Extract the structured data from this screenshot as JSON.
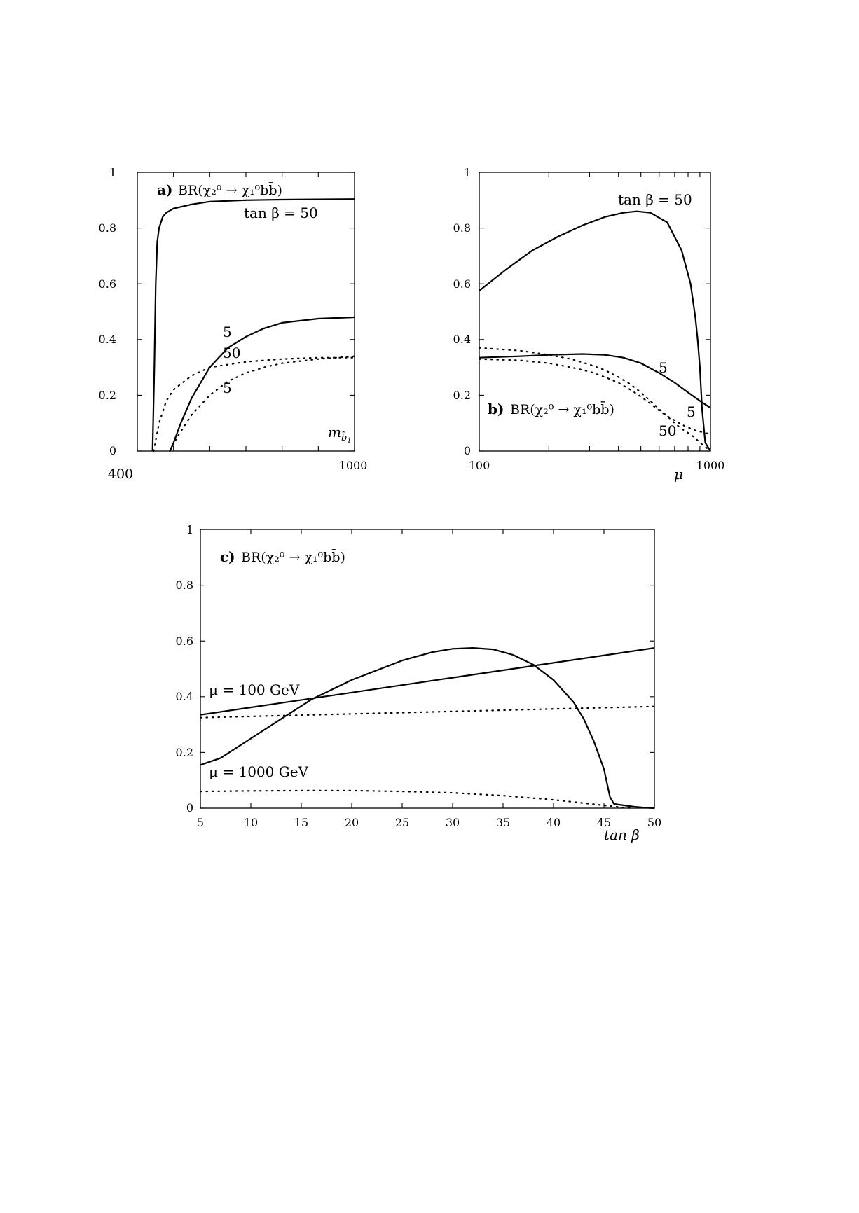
{
  "chart_data": [
    {
      "id": "a",
      "type": "line",
      "panel_letter": "a)",
      "title": "BR(χ₂⁰ → χ₁⁰bb̄)",
      "xlabel": "m_b̃1",
      "ylabel": "",
      "xlim": [
        400,
        1000
      ],
      "ylim": [
        0,
        1
      ],
      "x_tick_labels": [
        "400",
        "1000"
      ],
      "y_tick_labels": [
        "0",
        "0.2",
        "0.4",
        "0.6",
        "0.8",
        "1"
      ],
      "y_ticks": [
        0,
        0.2,
        0.4,
        0.6,
        0.8,
        1
      ],
      "annotations": [
        "tan β = 50",
        "5",
        "50",
        "5"
      ],
      "series": [
        {
          "style": "solid",
          "x": [
            442,
            447,
            451,
            455,
            460,
            470,
            480,
            500,
            550,
            600,
            700,
            800,
            900,
            1000
          ],
          "y": [
            0,
            0.3,
            0.6,
            0.75,
            0.8,
            0.84,
            0.855,
            0.87,
            0.885,
            0.895,
            0.9,
            0.902,
            0.903,
            0.904
          ]
        },
        {
          "style": "solid",
          "x": [
            490,
            500,
            520,
            550,
            600,
            650,
            700,
            750,
            800,
            900,
            1000
          ],
          "y": [
            0,
            0.03,
            0.1,
            0.19,
            0.3,
            0.37,
            0.41,
            0.44,
            0.46,
            0.475,
            0.48
          ]
        },
        {
          "style": "dotted",
          "x": [
            445,
            460,
            480,
            500,
            550,
            600,
            650,
            700,
            800,
            900,
            1000
          ],
          "y": [
            0,
            0.1,
            0.18,
            0.22,
            0.27,
            0.3,
            0.31,
            0.32,
            0.33,
            0.335,
            0.335
          ]
        },
        {
          "style": "dotted",
          "x": [
            490,
            510,
            550,
            600,
            650,
            700,
            750,
            800,
            900,
            1000
          ],
          "y": [
            0,
            0.05,
            0.13,
            0.2,
            0.25,
            0.28,
            0.3,
            0.315,
            0.33,
            0.34
          ]
        }
      ]
    },
    {
      "id": "b",
      "type": "line",
      "panel_letter": "b)",
      "title": "BR(χ₂⁰ → χ₁⁰bb̄)",
      "xlabel": "μ",
      "ylabel": "",
      "xlim": [
        100,
        1000
      ],
      "xscale": "log",
      "ylim": [
        0,
        1
      ],
      "x_tick_labels": [
        "100",
        "1000"
      ],
      "y_tick_labels": [
        "0",
        "0.2",
        "0.4",
        "0.6",
        "0.8",
        "1"
      ],
      "y_ticks": [
        0,
        0.2,
        0.4,
        0.6,
        0.8,
        1
      ],
      "annotations": [
        "tan β = 50",
        "5",
        "5",
        "50"
      ],
      "series": [
        {
          "style": "solid",
          "x": [
            100,
            130,
            170,
            220,
            280,
            350,
            420,
            480,
            550,
            650,
            750,
            820,
            860,
            880,
            900,
            920,
            950,
            1000
          ],
          "y": [
            0.575,
            0.65,
            0.72,
            0.77,
            0.81,
            0.84,
            0.855,
            0.86,
            0.855,
            0.82,
            0.72,
            0.6,
            0.48,
            0.4,
            0.3,
            0.15,
            0.03,
            0.0
          ]
        },
        {
          "style": "solid",
          "x": [
            100,
            150,
            200,
            280,
            350,
            420,
            500,
            600,
            700,
            800,
            900,
            1000
          ],
          "y": [
            0.335,
            0.34,
            0.345,
            0.348,
            0.345,
            0.335,
            0.315,
            0.28,
            0.245,
            0.21,
            0.18,
            0.155
          ]
        },
        {
          "style": "dotted",
          "x": [
            100,
            150,
            200,
            250,
            300,
            350,
            400,
            450,
            500,
            550,
            600,
            650,
            700,
            750,
            800,
            850,
            900,
            950,
            1000
          ],
          "y": [
            0.37,
            0.36,
            0.345,
            0.33,
            0.31,
            0.29,
            0.265,
            0.24,
            0.21,
            0.18,
            0.15,
            0.125,
            0.1,
            0.08,
            0.065,
            0.05,
            0.03,
            0.015,
            0.0
          ]
        },
        {
          "style": "dotted",
          "x": [
            100,
            150,
            200,
            250,
            300,
            350,
            400,
            450,
            500,
            550,
            600,
            650,
            700,
            750,
            800,
            850,
            900,
            950,
            1000
          ],
          "y": [
            0.33,
            0.325,
            0.315,
            0.3,
            0.285,
            0.265,
            0.245,
            0.22,
            0.195,
            0.17,
            0.145,
            0.125,
            0.11,
            0.095,
            0.085,
            0.075,
            0.07,
            0.065,
            0.06
          ]
        }
      ]
    },
    {
      "id": "c",
      "type": "line",
      "panel_letter": "c)",
      "title": "BR(χ₂⁰ → χ₁⁰bb̄)",
      "xlabel": "tan β",
      "ylabel": "",
      "xlim": [
        5,
        50
      ],
      "ylim": [
        0,
        1
      ],
      "x_ticks": [
        5,
        10,
        15,
        20,
        25,
        30,
        35,
        40,
        45,
        50
      ],
      "x_tick_labels": [
        "5",
        "10",
        "15",
        "20",
        "25",
        "30",
        "35",
        "40",
        "45",
        "50"
      ],
      "y_tick_labels": [
        "0",
        "0.2",
        "0.4",
        "0.6",
        "0.8",
        "1"
      ],
      "y_ticks": [
        0,
        0.2,
        0.4,
        0.6,
        0.8,
        1
      ],
      "annotations": [
        "μ = 100 GeV",
        "μ = 1000 GeV"
      ],
      "series": [
        {
          "style": "solid",
          "x": [
            5,
            50
          ],
          "y": [
            0.335,
            0.575
          ]
        },
        {
          "style": "solid",
          "x": [
            5,
            7,
            10,
            13,
            16,
            20,
            25,
            28,
            30,
            32,
            34,
            36,
            38,
            40,
            42,
            43,
            44,
            45,
            45.6,
            46,
            47,
            48,
            49,
            50
          ],
          "y": [
            0.155,
            0.18,
            0.25,
            0.32,
            0.39,
            0.46,
            0.53,
            0.56,
            0.572,
            0.575,
            0.57,
            0.55,
            0.515,
            0.46,
            0.38,
            0.32,
            0.24,
            0.14,
            0.04,
            0.015,
            0.01,
            0.005,
            0.002,
            0.0
          ]
        },
        {
          "style": "dotted",
          "x": [
            5,
            50
          ],
          "y": [
            0.325,
            0.365
          ]
        },
        {
          "style": "dotted",
          "x": [
            5,
            10,
            15,
            20,
            25,
            30,
            35,
            40,
            42,
            44,
            46,
            47,
            48
          ],
          "y": [
            0.06,
            0.062,
            0.063,
            0.063,
            0.06,
            0.055,
            0.045,
            0.03,
            0.022,
            0.014,
            0.006,
            0.002,
            0.0
          ]
        }
      ]
    }
  ]
}
